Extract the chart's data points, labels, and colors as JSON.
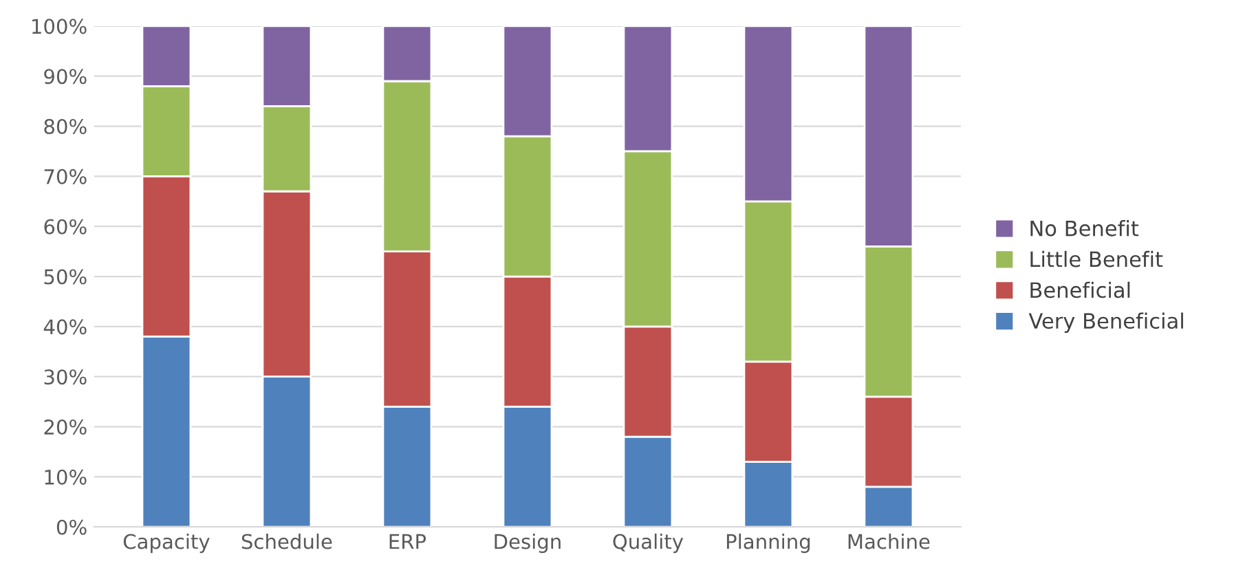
{
  "chart_data": {
    "type": "bar",
    "stacked": true,
    "categories": [
      "Capacity",
      "Schedule",
      "ERP",
      "Design",
      "Quality",
      "Planning",
      "Machine"
    ],
    "series": [
      {
        "name": "Very Beneficial",
        "color": "#4f81bd",
        "values": [
          38,
          30,
          24,
          24,
          18,
          13,
          8
        ]
      },
      {
        "name": "Beneficial",
        "color": "#c0504d",
        "values": [
          32,
          37,
          31,
          26,
          22,
          20,
          18
        ]
      },
      {
        "name": "Little Benefit",
        "color": "#9bbb59",
        "values": [
          18,
          17,
          34,
          28,
          35,
          32,
          30
        ]
      },
      {
        "name": "No Benefit",
        "color": "#8064a2",
        "values": [
          12,
          16,
          11,
          22,
          25,
          35,
          44
        ]
      }
    ],
    "ylim": [
      0,
      100
    ],
    "yticks": [
      {
        "value": 0,
        "label": "0%"
      },
      {
        "value": 10,
        "label": "10%"
      },
      {
        "value": 20,
        "label": "20%"
      },
      {
        "value": 30,
        "label": "30%"
      },
      {
        "value": 40,
        "label": "40%"
      },
      {
        "value": 50,
        "label": "50%"
      },
      {
        "value": 60,
        "label": "60%"
      },
      {
        "value": 70,
        "label": "70%"
      },
      {
        "value": 80,
        "label": "80%"
      },
      {
        "value": 90,
        "label": "90%"
      },
      {
        "value": 100,
        "label": "100%"
      }
    ],
    "grid": "y",
    "legend": "right"
  }
}
